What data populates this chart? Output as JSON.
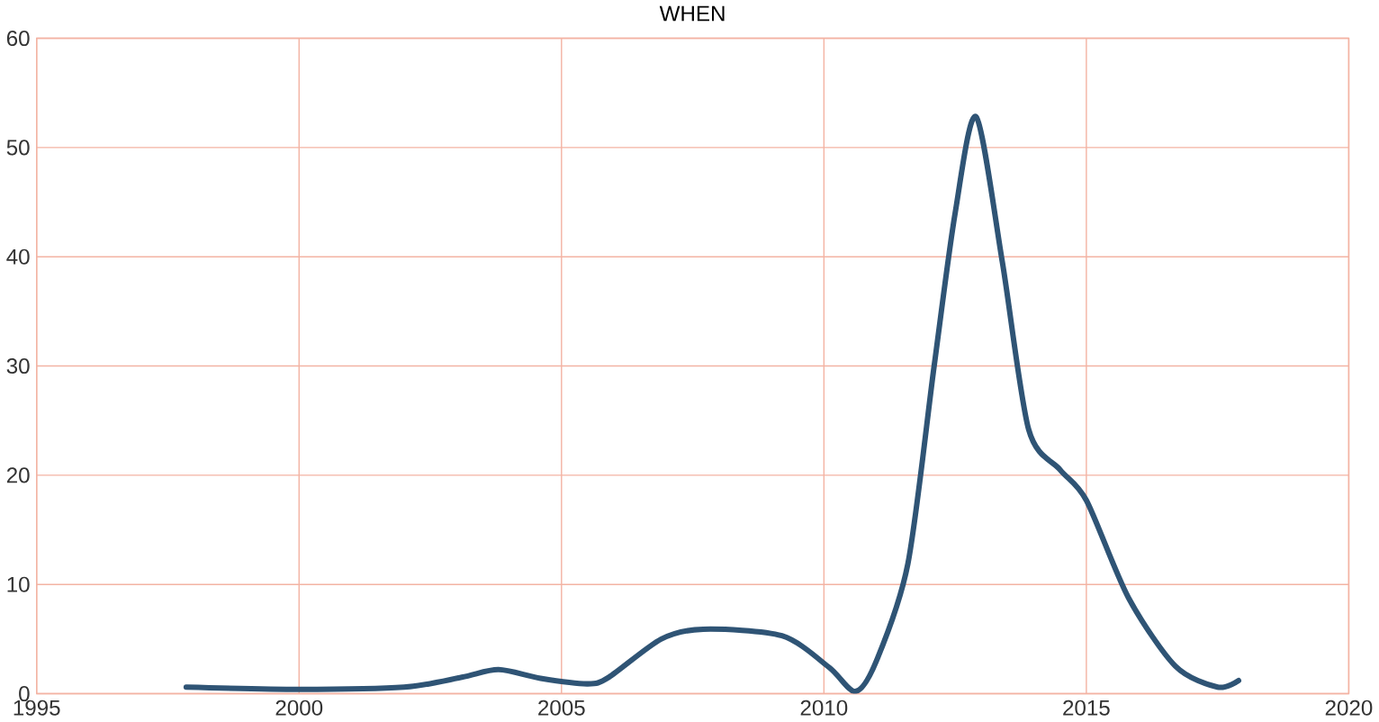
{
  "chart_data": {
    "type": "line",
    "title": "WHEN",
    "xlim": [
      1995,
      2020
    ],
    "xticks": [
      1995,
      2000,
      2005,
      2010,
      2015,
      2020
    ],
    "ylim": [
      0,
      60
    ],
    "yticks": [
      0,
      10,
      20,
      30,
      40,
      50,
      60
    ],
    "grid": true,
    "marker": "none",
    "line_style": "solid",
    "series": [
      {
        "color": "#2f5475",
        "x": [
          1997.85,
          2000,
          2002,
          2003.1,
          2003.8,
          2004.6,
          2005.5,
          2005.9,
          2006.9,
          2007.7,
          2009.2,
          2010.1,
          2010.6,
          2011.0,
          2011.6,
          2012.1,
          2012.5,
          2012.9,
          2013.4,
          2013.9,
          2014.5,
          2015.0,
          2015.8,
          2016.7,
          2017.5,
          2017.9
        ],
        "values": [
          0.6,
          0.4,
          0.6,
          1.5,
          2.2,
          1.4,
          0.9,
          1.5,
          5.0,
          5.9,
          5.3,
          2.4,
          0.2,
          3,
          11.9,
          30,
          44,
          52.8,
          39.5,
          24.2,
          20.5,
          17.7,
          8.8,
          2.5,
          0.6,
          1.2
        ]
      }
    ]
  }
}
